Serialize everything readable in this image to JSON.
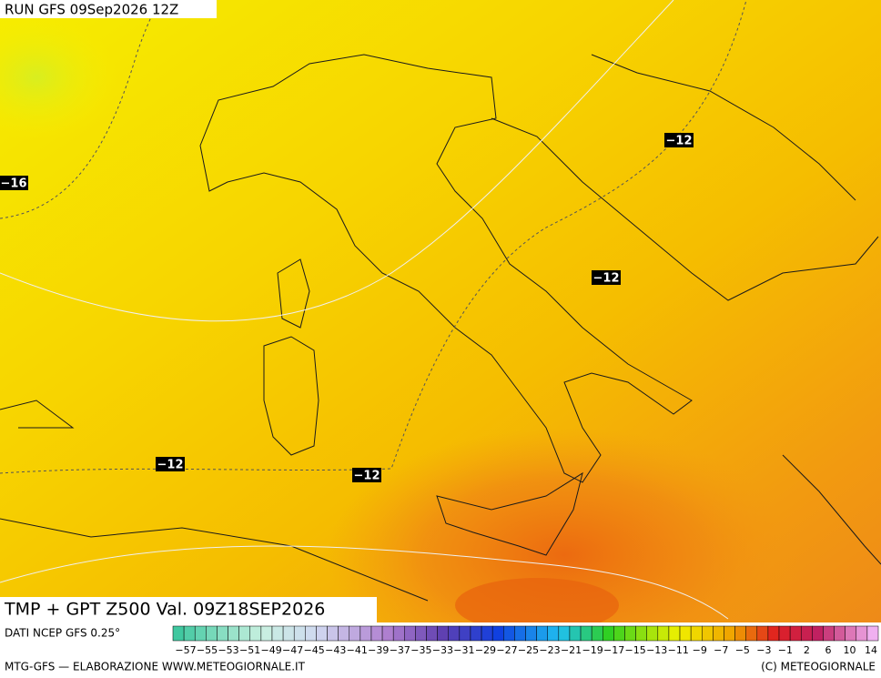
{
  "header": {
    "run": "RUN GFS 09Sep2026 12Z"
  },
  "contour_labels": [
    "−16",
    "−12",
    "−12",
    "−12",
    "−12"
  ],
  "footer": {
    "valid": "TMP + GPT Z500 Val. 09Z18SEP2026",
    "source": "DATI NCEP GFS 0.25°",
    "credits": "MTG-GFS — ELABORAZIONE WWW.METEOGIORNALE.IT",
    "copyright": "(C) METEOGIORNALE"
  },
  "scale_labels": [
    "−57",
    "−55",
    "−53",
    "−51",
    "−49",
    "−47",
    "−45",
    "−43",
    "−41",
    "−39",
    "−37",
    "−35",
    "−33",
    "−31",
    "−29",
    "−27",
    "−25",
    "−23",
    "−21",
    "−19",
    "−17",
    "−15",
    "−13",
    "−11",
    "−9",
    "−7",
    "−5",
    "−3",
    "−1",
    "2",
    "6",
    "10",
    "14"
  ]
}
